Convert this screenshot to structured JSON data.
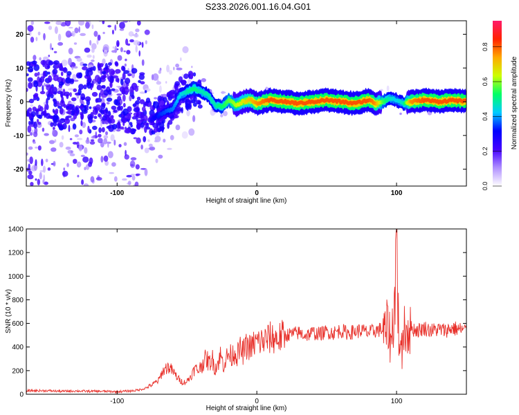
{
  "title": "S233.2026.001.16.04.G01",
  "chart_data": [
    {
      "type": "heatmap",
      "xlabel": "Height of straight line (km)",
      "ylabel": "Frequency (Hz)",
      "xlim": [
        -165,
        150
      ],
      "ylim": [
        -25,
        24
      ],
      "xticks": [
        -100,
        0,
        100
      ],
      "xtick_labels": [
        "-100",
        "0",
        "100"
      ],
      "yticks": [
        -20,
        -10,
        0,
        10,
        20
      ],
      "ytick_labels": [
        "-20",
        "-10",
        "0",
        "10",
        "20"
      ],
      "colorbar": {
        "label": "Normalized spectral amplitude",
        "range": [
          0,
          0.95
        ],
        "ticks": [
          0,
          0.2,
          0.4,
          0.6,
          0.8
        ],
        "tick_labels": [
          "0.0",
          "0.2",
          "0.4",
          "0.6",
          "0.8"
        ],
        "colors": [
          "#ffffff",
          "#b090ff",
          "#4400ff",
          "#0000ff",
          "#00ccff",
          "#00ff66",
          "#ccff00",
          "#ffaa00",
          "#ff2200",
          "#ff1a6a"
        ]
      },
      "ridge": {
        "x": [
          -165,
          -140,
          -120,
          -100,
          -85,
          -75,
          -70,
          -60,
          -55,
          -50,
          -45,
          -40,
          -35,
          -30,
          -25,
          -20,
          -15,
          -10,
          -5,
          0,
          10,
          20,
          30,
          40,
          50,
          60,
          70,
          80,
          85,
          90,
          95,
          100,
          105,
          110,
          120,
          130,
          140,
          150
        ],
        "y": [
          1.5,
          2,
          1,
          2,
          0,
          -5,
          -4,
          -2,
          2,
          3,
          4,
          3,
          2,
          -1,
          -1.5,
          0.5,
          -1,
          0,
          0.5,
          -0.5,
          0.5,
          0,
          -0.5,
          0,
          0.5,
          0,
          -0.5,
          0.5,
          -0.5,
          0,
          1,
          0.5,
          -0.5,
          0,
          0.5,
          0,
          0.5,
          0
        ],
        "amplitude": [
          0.3,
          0.3,
          0.35,
          0.35,
          0.3,
          0.3,
          0.35,
          0.4,
          0.45,
          0.5,
          0.55,
          0.5,
          0.5,
          0.5,
          0.55,
          0.6,
          0.65,
          0.7,
          0.75,
          0.8,
          0.85,
          0.85,
          0.85,
          0.85,
          0.85,
          0.85,
          0.85,
          0.85,
          0.8,
          0.6,
          0.5,
          0.45,
          0.5,
          0.8,
          0.85,
          0.85,
          0.85,
          0.85
        ]
      }
    },
    {
      "type": "line",
      "xlabel": "Height of straight line (km)",
      "ylabel": "SNR (10 * v/v)",
      "xlim": [
        -165,
        150
      ],
      "ylim": [
        0,
        1400
      ],
      "xticks": [
        -100,
        0,
        100
      ],
      "xtick_labels": [
        "-100",
        "0",
        "100"
      ],
      "yticks": [
        0,
        200,
        400,
        600,
        800,
        1000,
        1200,
        1400
      ],
      "ytick_labels": [
        "0",
        "200",
        "400",
        "600",
        "800",
        "1000",
        "1200",
        "1400"
      ],
      "series": [
        {
          "color": "#e8302a",
          "x": [
            -165,
            -150,
            -140,
            -130,
            -120,
            -110,
            -100,
            -90,
            -85,
            -80,
            -75,
            -70,
            -68,
            -66,
            -64,
            -62,
            -60,
            -58,
            -56,
            -54,
            -52,
            -50,
            -48,
            -46,
            -44,
            -42,
            -40,
            -38,
            -36,
            -34,
            -32,
            -30,
            -28,
            -26,
            -24,
            -22,
            -20,
            -18,
            -16,
            -14,
            -12,
            -10,
            -8,
            -6,
            -4,
            -2,
            0,
            5,
            10,
            15,
            20,
            25,
            30,
            35,
            40,
            45,
            50,
            55,
            60,
            65,
            70,
            75,
            80,
            85,
            90,
            92,
            94,
            96,
            98,
            99,
            100,
            101,
            102,
            103,
            104,
            105,
            106,
            108,
            110,
            115,
            120,
            125,
            130,
            135,
            140,
            145,
            150
          ],
          "y": [
            30,
            30,
            25,
            28,
            25,
            25,
            22,
            28,
            35,
            50,
            80,
            120,
            180,
            210,
            230,
            220,
            190,
            160,
            130,
            110,
            100,
            110,
            140,
            180,
            220,
            200,
            240,
            280,
            300,
            260,
            310,
            220,
            260,
            330,
            250,
            300,
            340,
            320,
            360,
            330,
            380,
            350,
            400,
            410,
            390,
            430,
            440,
            450,
            480,
            470,
            500,
            510,
            520,
            500,
            520,
            510,
            530,
            520,
            540,
            520,
            530,
            540,
            520,
            540,
            550,
            500,
            600,
            420,
            700,
            900,
            1400,
            800,
            300,
            650,
            200,
            700,
            520,
            560,
            560,
            540,
            560,
            540,
            550,
            540,
            560,
            550,
            540
          ]
        }
      ]
    }
  ]
}
